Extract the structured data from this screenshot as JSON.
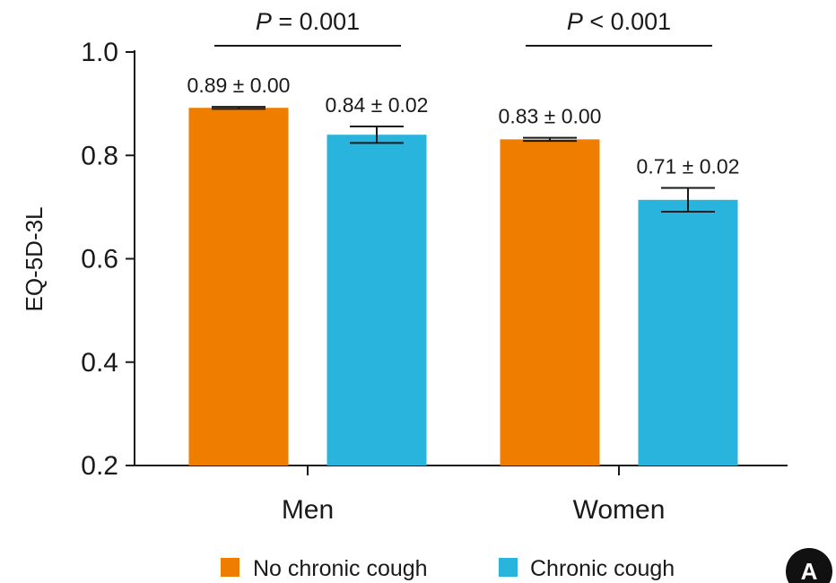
{
  "chart_data": {
    "type": "bar",
    "categories": [
      "Men",
      "Women"
    ],
    "ylabel": "EQ-5D-3L",
    "ylim": [
      0.2,
      1.0
    ],
    "yticks": [
      0.2,
      0.4,
      0.6,
      0.8,
      1.0
    ],
    "ytick_labels": [
      "0.2",
      "0.4",
      "0.6",
      "0.8",
      "1.0"
    ],
    "series": [
      {
        "name": "No chronic cough",
        "color": "#ef7d00",
        "values": [
          0.892,
          0.831
        ],
        "errors": [
          0.002,
          0.003
        ],
        "labels": [
          "0.89 ± 0.00",
          "0.83 ± 0.00"
        ]
      },
      {
        "name": "Chronic cough",
        "color": "#29b4de",
        "values": [
          0.84,
          0.714
        ],
        "errors": [
          0.016,
          0.023
        ],
        "labels": [
          "0.84 ± 0.02",
          "0.71 ± 0.02"
        ]
      }
    ],
    "significance": [
      {
        "category": "Men",
        "prefix": "P",
        "text": " = 0.001"
      },
      {
        "category": "Women",
        "prefix": "P",
        "text": " < 0.001"
      }
    ],
    "legend_position": "bottom",
    "grid": false,
    "panel_label": "A"
  }
}
